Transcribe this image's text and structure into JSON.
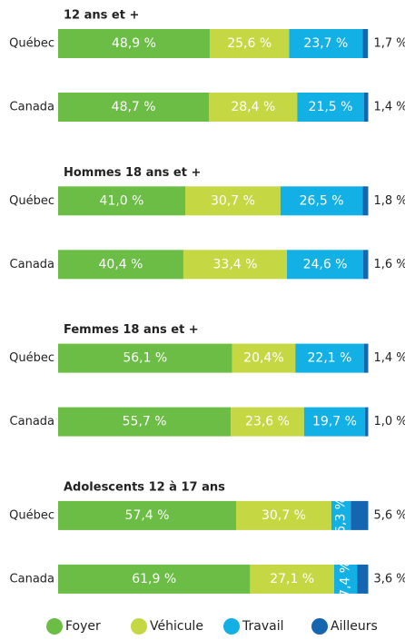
{
  "chart_data": {
    "type": "bar",
    "orientation": "horizontal",
    "stacked": true,
    "panel_titles": [
      "12 ans et +",
      "Hommes 18 ans et +",
      "Femmes 18 ans et +",
      "Adolescents 12 à 17 ans"
    ],
    "categories": [
      "Québec",
      "Canada",
      "Québec",
      "Canada",
      "Québec",
      "Canada",
      "Québec",
      "Canada"
    ],
    "xlim": [
      0,
      100
    ],
    "legend": "bottom",
    "series": [
      {
        "name": "Foyer",
        "color": "#6cbd45",
        "values": [
          48.9,
          48.7,
          41.0,
          40.4,
          56.1,
          55.7,
          57.4,
          61.9
        ],
        "value_labels": [
          "48,9 %",
          "48,7 %",
          "41,0 %",
          "40,4 %",
          "56,1 %",
          "55,7 %",
          "57,4 %",
          "61,9 %"
        ]
      },
      {
        "name": "Véhicule",
        "color": "#c5d843",
        "values": [
          25.6,
          28.4,
          30.7,
          33.4,
          20.4,
          23.6,
          30.7,
          27.1
        ],
        "value_labels": [
          "25,6 %",
          "28,4 %",
          "30,7 %",
          "33,4 %",
          "20,4%",
          "23,6 %",
          "30,7 %",
          "27,1 %"
        ]
      },
      {
        "name": "Travail",
        "color": "#13b0e6",
        "values": [
          23.7,
          21.5,
          26.5,
          24.6,
          22.1,
          19.7,
          6.3,
          7.4
        ],
        "value_labels": [
          "23,7 %",
          "21,5 %",
          "26,5 %",
          "24,6 %",
          "22,1 %",
          "19,7 %",
          "6,3 %",
          "7,4 %"
        ]
      },
      {
        "name": "Ailleurs",
        "color": "#1565b0",
        "values": [
          1.7,
          1.4,
          1.8,
          1.6,
          1.4,
          1.0,
          5.6,
          3.6
        ],
        "value_labels": [
          "1,7 %",
          "1,4 %",
          "1,8 %",
          "1,6 %",
          "1,4 %",
          "1,0 %",
          "5,6 %",
          "3,6 %"
        ]
      }
    ]
  }
}
